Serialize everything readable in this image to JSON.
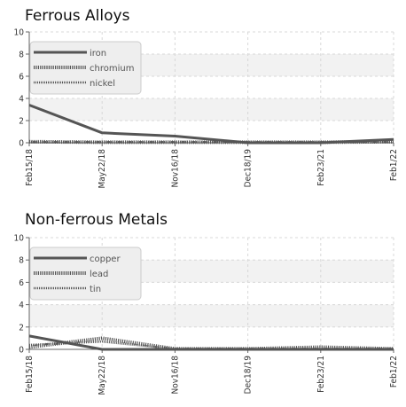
{
  "chart_data": [
    {
      "type": "line",
      "title": "Ferrous Alloys",
      "categories": [
        "Feb15/18",
        "May22/18",
        "Nov16/18",
        "Dec18/19",
        "Feb23/21",
        "Feb1/22"
      ],
      "ylim": [
        0,
        10
      ],
      "yticks": [
        0,
        2,
        4,
        6,
        8,
        10
      ],
      "grid": true,
      "legend_position": "top-left",
      "series": [
        {
          "name": "iron",
          "style": "solid",
          "values": [
            3.4,
            0.9,
            0.6,
            0.0,
            0.0,
            0.3
          ]
        },
        {
          "name": "chromium",
          "style": "dotted",
          "values": [
            0.1,
            0.05,
            0.05,
            0.05,
            0.05,
            0.1
          ]
        },
        {
          "name": "nickel",
          "style": "thin-dotted",
          "values": [
            0.05,
            0.05,
            0.05,
            0.05,
            0.05,
            0.05
          ]
        }
      ]
    },
    {
      "type": "line",
      "title": "Non-ferrous Metals",
      "categories": [
        "Feb15/18",
        "May22/18",
        "Nov16/18",
        "Dec18/19",
        "Feb23/21",
        "Feb1/22"
      ],
      "ylim": [
        0,
        10
      ],
      "yticks": [
        0,
        2,
        4,
        6,
        8,
        10
      ],
      "grid": true,
      "legend_position": "top-left",
      "series": [
        {
          "name": "copper",
          "style": "solid",
          "values": [
            1.2,
            0.0,
            0.0,
            0.0,
            0.0,
            0.0
          ]
        },
        {
          "name": "lead",
          "style": "dotted",
          "values": [
            0.2,
            1.0,
            0.05,
            0.05,
            0.2,
            0.05
          ]
        },
        {
          "name": "tin",
          "style": "thin-dotted",
          "values": [
            0.4,
            0.7,
            0.05,
            0.05,
            0.05,
            0.05
          ]
        }
      ]
    }
  ],
  "colors": {
    "line": "#555555",
    "grid": "#d8d8d8",
    "band": "#f2f2f2",
    "legend_bg": "#eeeeee",
    "axis": "#666666"
  }
}
